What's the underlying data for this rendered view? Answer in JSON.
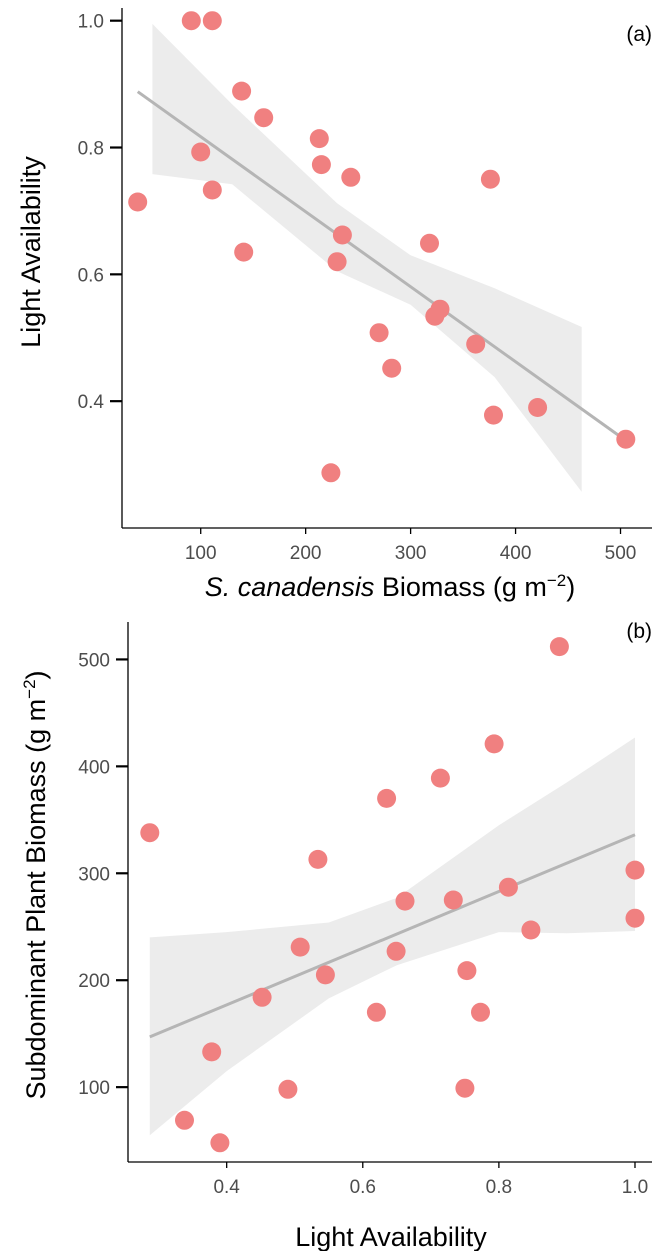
{
  "chart_data": [
    {
      "panel": "(a)",
      "type": "scatter",
      "xlabel": {
        "italic": "S. canadensis",
        "text": " Biomass (g m",
        "sup": "−2",
        "close": ")"
      },
      "ylabel": "Light Availability",
      "xlim": [
        25,
        530
      ],
      "ylim": [
        0.2,
        1.02
      ],
      "xticks": [
        100,
        200,
        300,
        400,
        500
      ],
      "yticks": [
        0.4,
        0.6,
        0.8,
        1.0
      ],
      "xtick_labels": [
        "100",
        "200",
        "300",
        "400",
        "500"
      ],
      "ytick_labels": [
        "0.4",
        "0.6",
        "0.8",
        "1.0"
      ],
      "grid": false,
      "points": [
        {
          "x": 40,
          "y": 0.714
        },
        {
          "x": 91,
          "y": 1.0
        },
        {
          "x": 111,
          "y": 1.0
        },
        {
          "x": 100,
          "y": 0.793
        },
        {
          "x": 111,
          "y": 0.733
        },
        {
          "x": 139,
          "y": 0.889
        },
        {
          "x": 141,
          "y": 0.635
        },
        {
          "x": 160,
          "y": 0.847
        },
        {
          "x": 213,
          "y": 0.814
        },
        {
          "x": 215,
          "y": 0.773
        },
        {
          "x": 243,
          "y": 0.753
        },
        {
          "x": 235,
          "y": 0.662
        },
        {
          "x": 230,
          "y": 0.62
        },
        {
          "x": 224,
          "y": 0.287
        },
        {
          "x": 270,
          "y": 0.508
        },
        {
          "x": 282,
          "y": 0.452
        },
        {
          "x": 318,
          "y": 0.649
        },
        {
          "x": 323,
          "y": 0.534
        },
        {
          "x": 328,
          "y": 0.545
        },
        {
          "x": 362,
          "y": 0.49
        },
        {
          "x": 376,
          "y": 0.75
        },
        {
          "x": 379,
          "y": 0.378
        },
        {
          "x": 421,
          "y": 0.39
        },
        {
          "x": 505,
          "y": 0.34
        }
      ],
      "fit": {
        "line": [
          {
            "x": 40,
            "y": 0.888
          },
          {
            "x": 505,
            "y": 0.338
          }
        ],
        "band": [
          {
            "x": 54,
            "lo": 0.758,
            "hi": 0.995
          },
          {
            "x": 130,
            "lo": 0.742,
            "hi": 0.868
          },
          {
            "x": 230,
            "lo": 0.605,
            "hi": 0.712
          },
          {
            "x": 300,
            "lo": 0.552,
            "hi": 0.63
          },
          {
            "x": 380,
            "lo": 0.438,
            "hi": 0.578
          },
          {
            "x": 463,
            "lo": 0.257,
            "hi": 0.517
          }
        ]
      },
      "point_color": "#f08080",
      "fit_color": "#b5b5b5",
      "band_color": "#ececec"
    },
    {
      "panel": "(b)",
      "type": "scatter",
      "xlabel": {
        "text": "Light Availability"
      },
      "ylabel": {
        "text": "Subdominant Plant Biomass (g m",
        "sup": "−2",
        "close": ")"
      },
      "xlim": [
        0.255,
        1.025
      ],
      "ylim": [
        30,
        535
      ],
      "xticks": [
        0.4,
        0.6,
        0.8,
        1.0
      ],
      "yticks": [
        100,
        200,
        300,
        400,
        500
      ],
      "xtick_labels": [
        "0.4",
        "0.6",
        "0.8",
        "1.0"
      ],
      "ytick_labels": [
        "100",
        "200",
        "300",
        "400",
        "500"
      ],
      "grid": false,
      "points": [
        {
          "x": 0.287,
          "y": 338
        },
        {
          "x": 0.338,
          "y": 69
        },
        {
          "x": 0.378,
          "y": 133
        },
        {
          "x": 0.39,
          "y": 48
        },
        {
          "x": 0.452,
          "y": 184
        },
        {
          "x": 0.49,
          "y": 98
        },
        {
          "x": 0.508,
          "y": 231
        },
        {
          "x": 0.534,
          "y": 313
        },
        {
          "x": 0.545,
          "y": 205
        },
        {
          "x": 0.62,
          "y": 170
        },
        {
          "x": 0.635,
          "y": 370
        },
        {
          "x": 0.649,
          "y": 227
        },
        {
          "x": 0.662,
          "y": 274
        },
        {
          "x": 0.714,
          "y": 389
        },
        {
          "x": 0.733,
          "y": 275
        },
        {
          "x": 0.75,
          "y": 99
        },
        {
          "x": 0.753,
          "y": 209
        },
        {
          "x": 0.773,
          "y": 170
        },
        {
          "x": 0.793,
          "y": 421
        },
        {
          "x": 0.814,
          "y": 287
        },
        {
          "x": 0.847,
          "y": 247
        },
        {
          "x": 0.889,
          "y": 512
        },
        {
          "x": 1.0,
          "y": 303
        },
        {
          "x": 1.0,
          "y": 258
        }
      ],
      "fit": {
        "line": [
          {
            "x": 0.287,
            "y": 147
          },
          {
            "x": 1.0,
            "y": 336
          }
        ],
        "band": [
          {
            "x": 0.287,
            "lo": 55,
            "hi": 240
          },
          {
            "x": 0.4,
            "lo": 115,
            "hi": 245
          },
          {
            "x": 0.55,
            "lo": 183,
            "hi": 254
          },
          {
            "x": 0.65,
            "lo": 214,
            "hi": 277
          },
          {
            "x": 0.8,
            "lo": 245,
            "hi": 345
          },
          {
            "x": 0.9,
            "lo": 244,
            "hi": 385
          },
          {
            "x": 1.0,
            "lo": 246,
            "hi": 427
          }
        ]
      },
      "point_color": "#f08080",
      "fit_color": "#b5b5b5",
      "band_color": "#ececec"
    }
  ]
}
